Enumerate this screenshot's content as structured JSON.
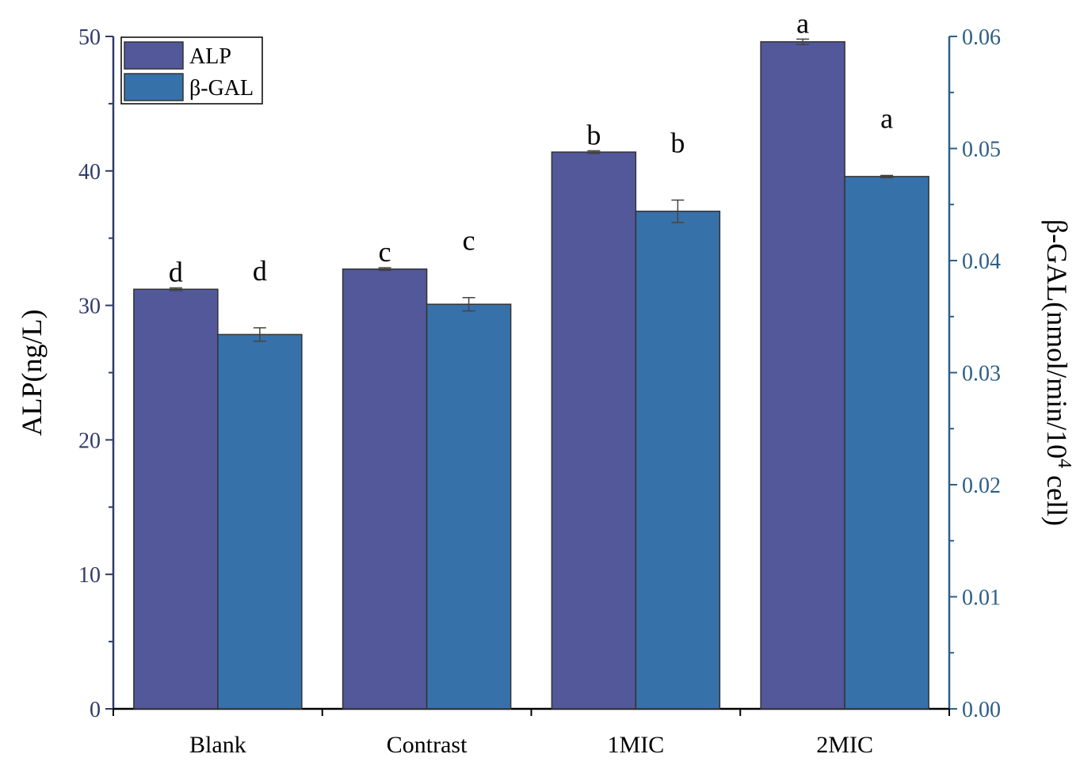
{
  "chart_data": {
    "type": "bar",
    "categories": [
      "Blank",
      "Contrast",
      "1MIC",
      "2MIC"
    ],
    "series": [
      {
        "name": "ALP",
        "axis": "left",
        "color": "#52589a",
        "values": [
          31.2,
          32.7,
          41.4,
          49.6
        ],
        "errors": [
          0.1,
          0.1,
          0.1,
          0.2
        ],
        "labels": [
          "d",
          "c",
          "b",
          "a"
        ]
      },
      {
        "name": "β-GAL",
        "axis": "right",
        "color": "#3771aa",
        "values": [
          0.0334,
          0.0361,
          0.0444,
          0.0475
        ],
        "errors": [
          0.0006,
          0.0006,
          0.001,
          0.0001
        ],
        "labels": [
          "d",
          "c",
          "b",
          "a"
        ]
      }
    ],
    "ylabel_left": "ALP(ng/L)",
    "ylabel_right_main": "β-GAL(nmol/min/10",
    "ylabel_right_sup": "4",
    "ylabel_right_tail": " cell)",
    "ylim_left": [
      0,
      50
    ],
    "ylim_right": [
      0,
      0.06
    ],
    "yticks_left": [
      "0",
      "10",
      "20",
      "30",
      "40",
      "50"
    ],
    "yticks_right": [
      "0.00",
      "0.01",
      "0.02",
      "0.03",
      "0.04",
      "0.05",
      "0.06"
    ],
    "left_axis_color": "#303a6b",
    "right_axis_color": "#2d5f86",
    "legend_position": "top-left",
    "grid": false
  }
}
